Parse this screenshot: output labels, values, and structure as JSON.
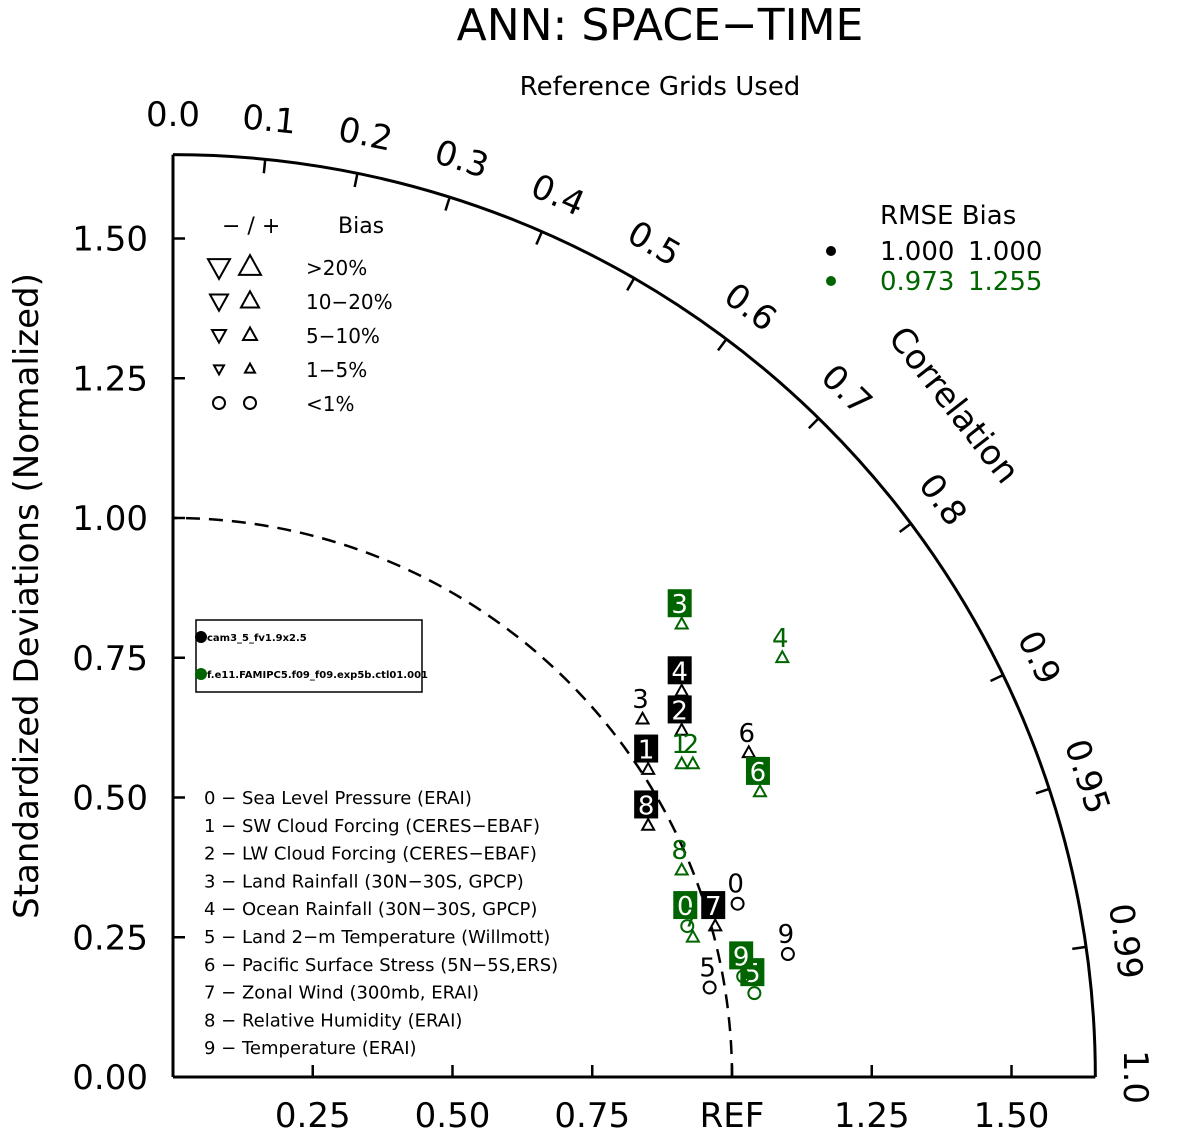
{
  "chart_data": {
    "type": "scatter",
    "title": "ANN: SPACE−TIME",
    "subtitle": "Reference Grids Used",
    "ylabel": "Standardized Deviations (Normalized)",
    "corr_label": "Correlation",
    "x_ticks": [
      {
        "value": 0.25,
        "label": "0.25"
      },
      {
        "value": 0.5,
        "label": "0.50"
      },
      {
        "value": 0.75,
        "label": "0.75"
      },
      {
        "value": 1.0,
        "label": "REF"
      },
      {
        "value": 1.25,
        "label": "1.25"
      },
      {
        "value": 1.5,
        "label": "1.50"
      }
    ],
    "y_ticks": [
      {
        "value": 0.0,
        "label": "0.00"
      },
      {
        "value": 0.25,
        "label": "0.25"
      },
      {
        "value": 0.5,
        "label": "0.50"
      },
      {
        "value": 0.75,
        "label": "0.75"
      },
      {
        "value": 1.0,
        "label": "1.00"
      },
      {
        "value": 1.25,
        "label": "1.25"
      },
      {
        "value": 1.5,
        "label": "1.50"
      }
    ],
    "corr_ticks": [
      {
        "value": 0.0,
        "label": "0.0"
      },
      {
        "value": 0.1,
        "label": "0.1"
      },
      {
        "value": 0.2,
        "label": "0.2"
      },
      {
        "value": 0.3,
        "label": "0.3"
      },
      {
        "value": 0.4,
        "label": "0.4"
      },
      {
        "value": 0.5,
        "label": "0.5"
      },
      {
        "value": 0.6,
        "label": "0.6"
      },
      {
        "value": 0.7,
        "label": "0.7"
      },
      {
        "value": 0.8,
        "label": "0.8"
      },
      {
        "value": 0.9,
        "label": "0.9"
      },
      {
        "value": 0.95,
        "label": "0.95"
      },
      {
        "value": 0.99,
        "label": "0.99"
      },
      {
        "value": 1.0,
        "label": "1.0"
      }
    ],
    "max_std": 1.65,
    "ref_std": 1.0,
    "bias_legend": {
      "header_sign": "− / +",
      "header_bias": "Bias",
      "rows": [
        {
          "label": ">20%",
          "marker": "triangle"
        },
        {
          "label": "10−20%",
          "marker": "triangle"
        },
        {
          "label": "5−10%",
          "marker": "triangle"
        },
        {
          "label": "1−5%",
          "marker": "triangle"
        },
        {
          "label": "<1%",
          "marker": "circle"
        }
      ]
    },
    "rmse_legend": {
      "header": "RMSE  Bias",
      "rows": [
        {
          "rmse": "1.000",
          "bias": "1.000",
          "color": "#000000"
        },
        {
          "rmse": "0.973",
          "bias": "1.255",
          "color": "#006400"
        }
      ]
    },
    "cases_legend": [
      {
        "name": "cam3_5_fv1.9x2.5",
        "color": "#000000"
      },
      {
        "name": "f.e11.FAMIPC5.f09_f09.exp5b.ctl01.001",
        "color": "#006400"
      }
    ],
    "variables": [
      "0 − Sea Level Pressure (ERAI)",
      "1 − SW Cloud Forcing (CERES−EBAF)",
      "2 − LW Cloud Forcing (CERES−EBAF)",
      "3 − Land Rainfall (30N−30S, GPCP)",
      "4 − Ocean Rainfall (30N−30S, GPCP)",
      "5 − Land 2−m Temperature (Willmott)",
      "6 − Pacific Surface Stress (5N−5S,ERS)",
      "7 − Zonal Wind (300mb, ERAI)",
      "8 − Relative Humidity (ERAI)",
      "9 − Temperature (ERAI)"
    ],
    "series": [
      {
        "name": "cam3_5_fv1.9x2.5",
        "color": "#000000",
        "points": [
          {
            "id": "0",
            "x": 1.01,
            "y": 0.31,
            "marker": "circle",
            "boxed": false
          },
          {
            "id": "1",
            "x": 0.85,
            "y": 0.55,
            "marker": "triangle-up",
            "boxed": true
          },
          {
            "id": "2",
            "x": 0.91,
            "y": 0.62,
            "marker": "triangle-up",
            "boxed": true
          },
          {
            "id": "3",
            "x": 0.84,
            "y": 0.64,
            "marker": "triangle-up",
            "boxed": false
          },
          {
            "id": "4",
            "x": 0.91,
            "y": 0.69,
            "marker": "triangle-up",
            "boxed": true
          },
          {
            "id": "5",
            "x": 0.96,
            "y": 0.16,
            "marker": "circle",
            "boxed": false
          },
          {
            "id": "6",
            "x": 1.03,
            "y": 0.58,
            "marker": "triangle-up",
            "boxed": false
          },
          {
            "id": "7",
            "x": 0.97,
            "y": 0.27,
            "marker": "triangle-up",
            "boxed": true
          },
          {
            "id": "8",
            "x": 0.85,
            "y": 0.45,
            "marker": "triangle-up",
            "boxed": true
          },
          {
            "id": "9",
            "x": 1.1,
            "y": 0.22,
            "marker": "circle",
            "boxed": false
          }
        ]
      },
      {
        "name": "f.e11.FAMIPC5.f09_f09.exp5b.ctl01.001",
        "color": "#006400",
        "points": [
          {
            "id": "0",
            "x": 0.92,
            "y": 0.27,
            "marker": "circle",
            "boxed": true
          },
          {
            "id": "1",
            "x": 0.91,
            "y": 0.56,
            "marker": "triangle-up",
            "boxed": false
          },
          {
            "id": "2",
            "x": 0.93,
            "y": 0.56,
            "marker": "triangle-up",
            "boxed": false
          },
          {
            "id": "3",
            "x": 0.91,
            "y": 0.81,
            "marker": "triangle-up",
            "boxed": true
          },
          {
            "id": "4",
            "x": 1.09,
            "y": 0.75,
            "marker": "triangle-up",
            "boxed": false
          },
          {
            "id": "5",
            "x": 1.04,
            "y": 0.15,
            "marker": "circle",
            "boxed": true
          },
          {
            "id": "6",
            "x": 1.05,
            "y": 0.51,
            "marker": "triangle-up",
            "boxed": true
          },
          {
            "id": "7",
            "x": 0.93,
            "y": 0.25,
            "marker": "triangle-up",
            "boxed": false
          },
          {
            "id": "8",
            "x": 0.91,
            "y": 0.37,
            "marker": "triangle-up",
            "boxed": false
          },
          {
            "id": "9",
            "x": 1.02,
            "y": 0.18,
            "marker": "circle",
            "boxed": true
          }
        ]
      }
    ]
  }
}
